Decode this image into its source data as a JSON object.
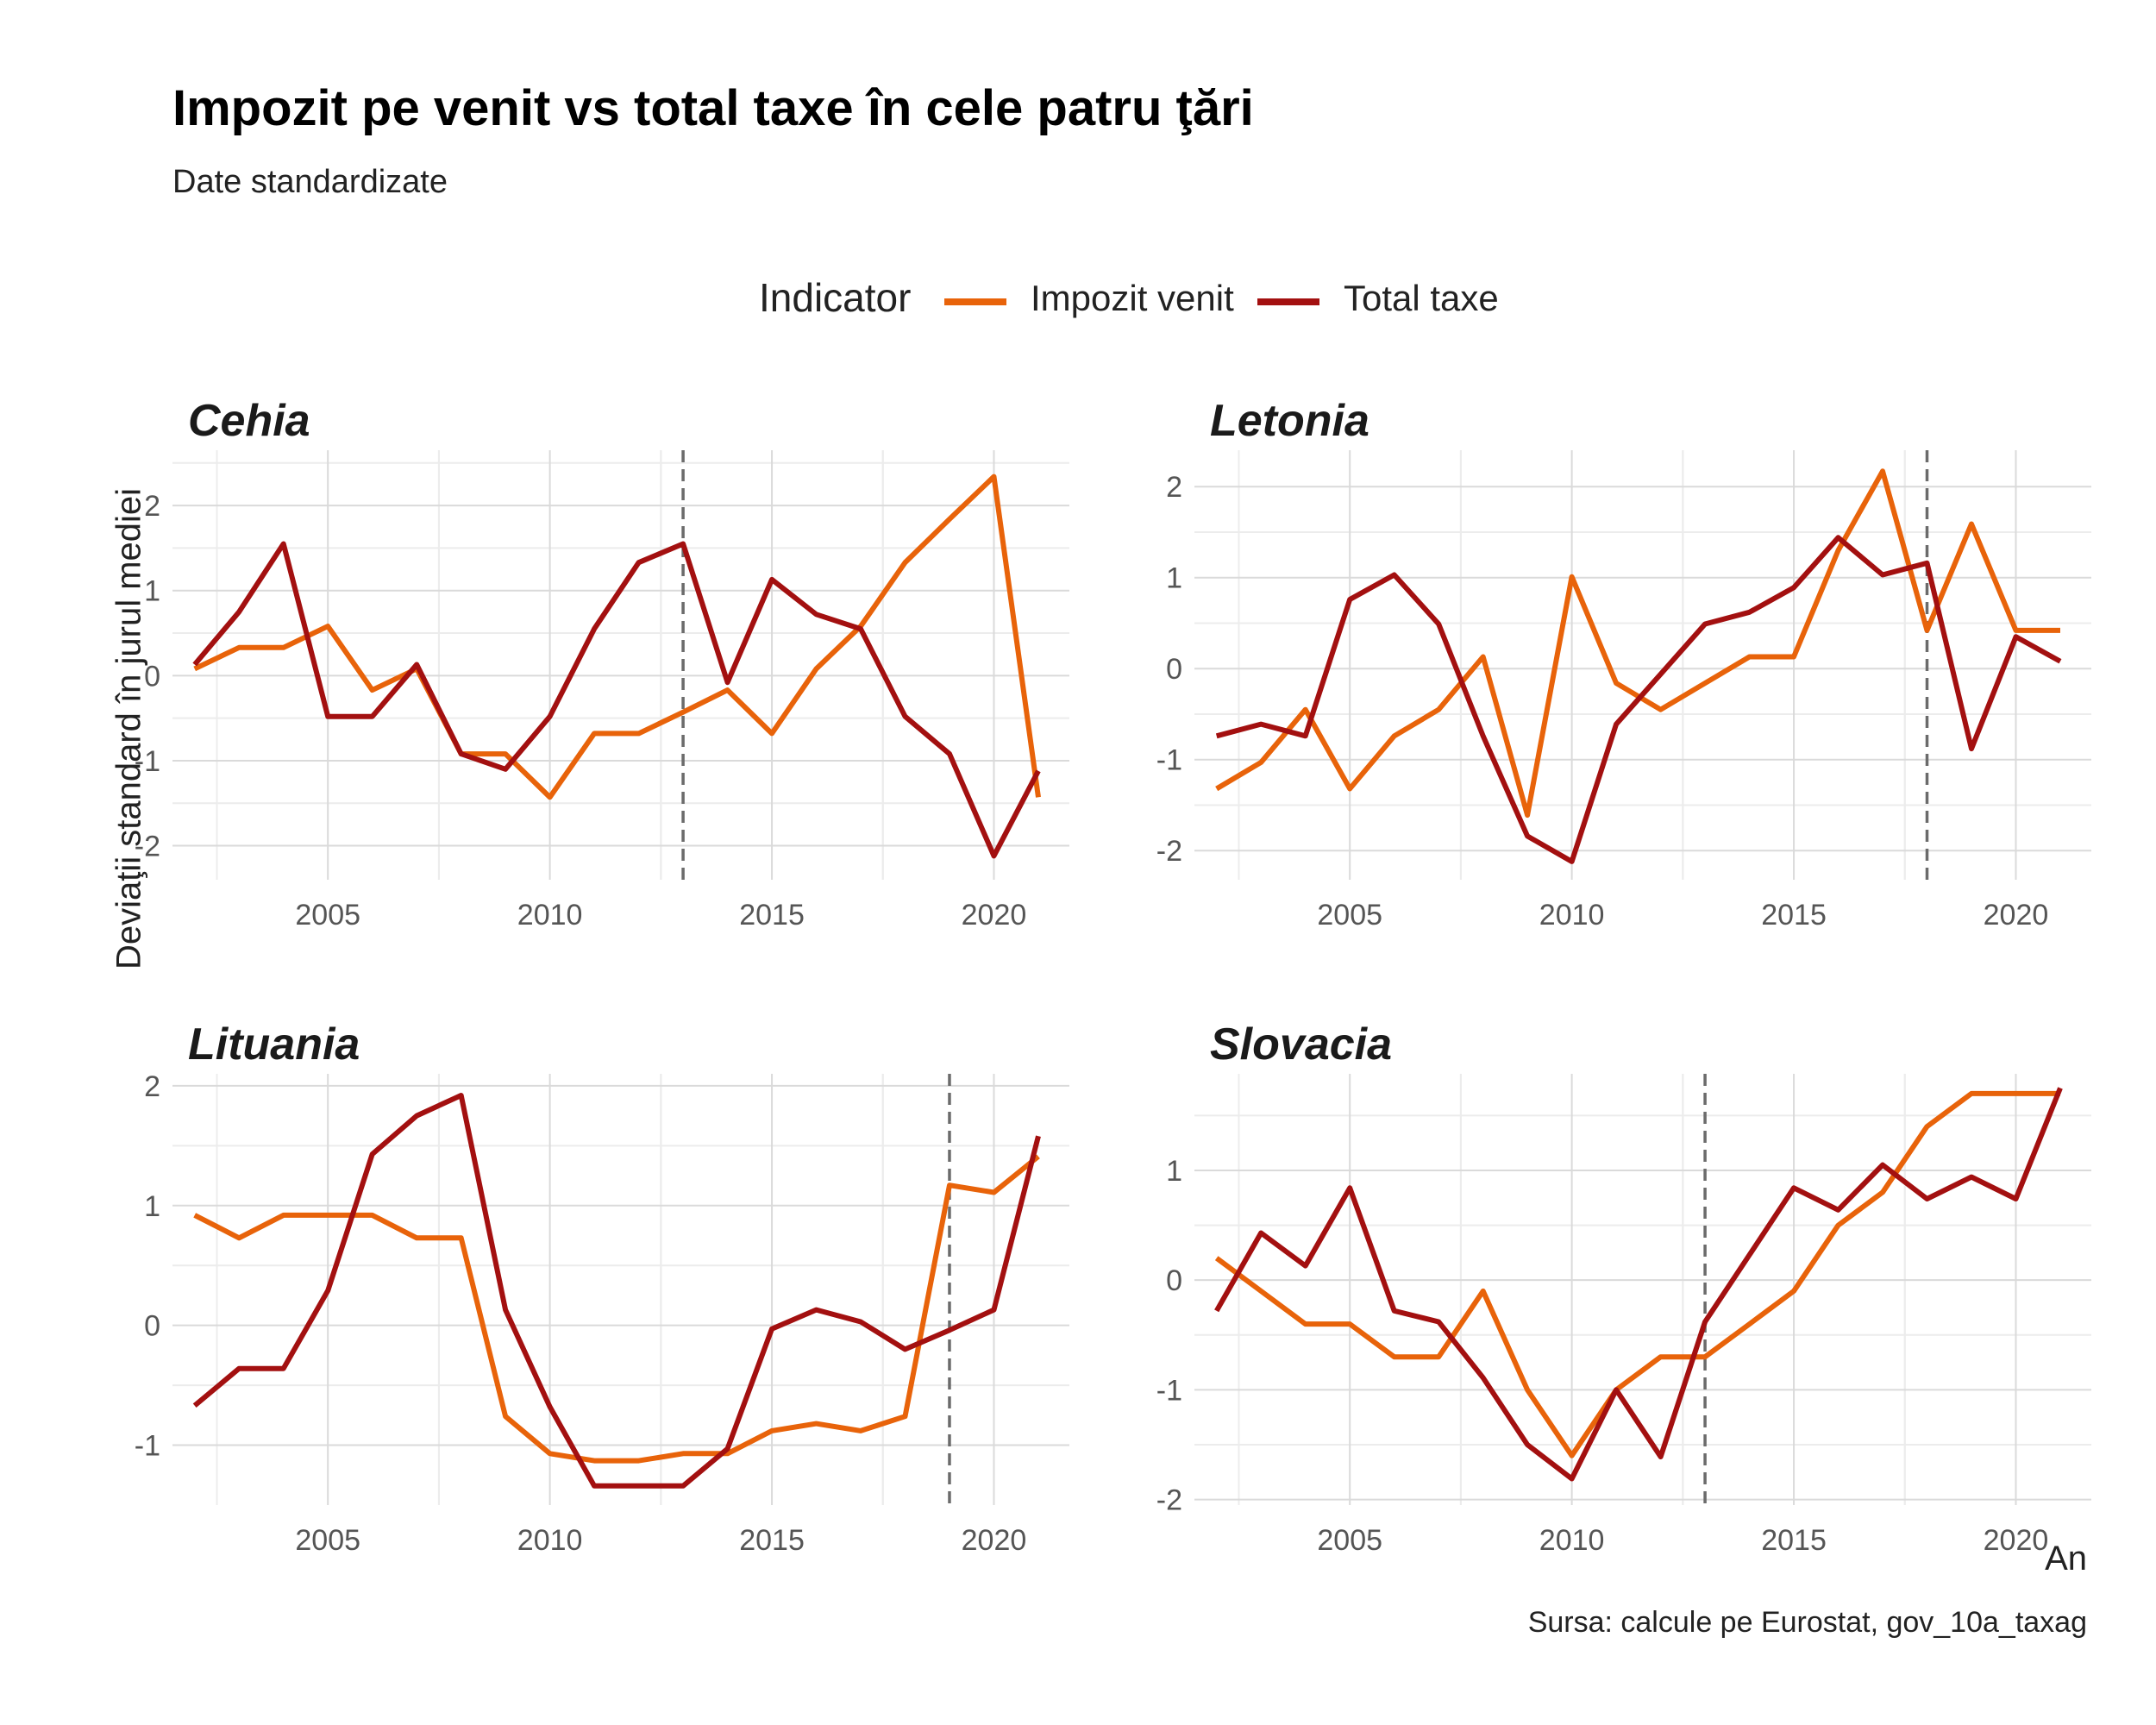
{
  "title": "Impozit pe venit vs total taxe în cele patru ţări",
  "subtitle": "Date standardizate",
  "legend": {
    "title": "Indicator",
    "items": [
      {
        "label": "Impozit venit",
        "color": "#E8630A"
      },
      {
        "label": "Total taxe",
        "color": "#A31010"
      }
    ]
  },
  "y_axis_label": "Deviaţii standard în jurul mediei",
  "x_axis_label": "An",
  "caption": "Sursa: calcule pe Eurostat, gov_10a_taxag",
  "colors": {
    "impozit_venit": "#E8630A",
    "total_taxe": "#A31010",
    "vline": "#6b6b6b",
    "grid": "#dadada"
  },
  "chart_data": [
    {
      "type": "line",
      "title": "Cehia",
      "x": [
        2002,
        2003,
        2004,
        2005,
        2006,
        2007,
        2008,
        2009,
        2010,
        2011,
        2012,
        2013,
        2014,
        2015,
        2016,
        2017,
        2018,
        2019,
        2020,
        2021
      ],
      "series": [
        {
          "name": "Impozit venit",
          "values": [
            0.08,
            0.33,
            0.33,
            0.58,
            -0.17,
            0.08,
            -0.92,
            -0.92,
            -1.43,
            -0.68,
            -0.68,
            -0.43,
            -0.17,
            -0.68,
            0.08,
            0.58,
            1.33,
            1.84,
            2.34,
            -1.43
          ]
        },
        {
          "name": "Total taxe",
          "values": [
            0.13,
            0.75,
            1.55,
            -0.48,
            -0.48,
            0.13,
            -0.92,
            -1.1,
            -0.48,
            0.55,
            1.33,
            1.55,
            -0.08,
            1.13,
            0.72,
            0.55,
            -0.48,
            -0.92,
            -2.12,
            -1.12
          ]
        }
      ],
      "vline": 2013,
      "xlim": [
        2001.5,
        2021.7
      ],
      "ylim": [
        -2.4,
        2.65
      ],
      "xticks": [
        2005,
        2010,
        2015,
        2020
      ],
      "yticks": [
        -2,
        -1,
        0,
        1,
        2
      ]
    },
    {
      "type": "line",
      "title": "Letonia",
      "x": [
        2002,
        2003,
        2004,
        2005,
        2006,
        2007,
        2008,
        2009,
        2010,
        2011,
        2012,
        2013,
        2014,
        2015,
        2016,
        2017,
        2018,
        2019,
        2020,
        2021
      ],
      "series": [
        {
          "name": "Impozit venit",
          "values": [
            -1.32,
            -1.03,
            -0.45,
            -1.32,
            -0.74,
            -0.45,
            0.13,
            -1.61,
            1.01,
            -0.16,
            -0.45,
            -0.16,
            0.13,
            0.13,
            1.3,
            2.17,
            0.42,
            1.59,
            0.42,
            0.42
          ]
        },
        {
          "name": "Total taxe",
          "values": [
            -0.74,
            -0.61,
            -0.74,
            0.76,
            1.03,
            0.49,
            -0.74,
            -1.84,
            -2.12,
            -0.61,
            -0.06,
            0.49,
            0.62,
            0.89,
            1.44,
            1.03,
            1.16,
            -0.88,
            0.35,
            0.08
          ]
        }
      ],
      "vline": 2018,
      "xlim": [
        2001.5,
        2021.7
      ],
      "ylim": [
        -2.32,
        2.4
      ],
      "xticks": [
        2005,
        2010,
        2015,
        2020
      ],
      "yticks": [
        -2,
        -1,
        0,
        1,
        2
      ]
    },
    {
      "type": "line",
      "title": "Lituania",
      "x": [
        2002,
        2003,
        2004,
        2005,
        2006,
        2007,
        2008,
        2009,
        2010,
        2011,
        2012,
        2013,
        2014,
        2015,
        2016,
        2017,
        2018,
        2019,
        2020,
        2021
      ],
      "series": [
        {
          "name": "Impozit venit",
          "values": [
            0.92,
            0.73,
            0.92,
            0.92,
            0.92,
            0.73,
            0.73,
            -0.76,
            -1.07,
            -1.13,
            -1.13,
            -1.07,
            -1.07,
            -0.88,
            -0.82,
            -0.88,
            -0.76,
            1.17,
            1.11,
            1.41
          ]
        },
        {
          "name": "Total taxe",
          "values": [
            -0.67,
            -0.36,
            -0.36,
            0.29,
            1.43,
            1.75,
            1.92,
            0.13,
            -0.68,
            -1.34,
            -1.34,
            -1.34,
            -1.03,
            -0.03,
            0.13,
            0.03,
            -0.2,
            -0.04,
            0.13,
            1.58
          ]
        }
      ],
      "vline": 2019,
      "xlim": [
        2001.5,
        2021.7
      ],
      "ylim": [
        -1.5,
        2.1
      ],
      "xticks": [
        2005,
        2010,
        2015,
        2020
      ],
      "yticks": [
        -1,
        0,
        1,
        2
      ]
    },
    {
      "type": "line",
      "title": "Slovacia",
      "x": [
        2002,
        2003,
        2004,
        2005,
        2006,
        2007,
        2008,
        2009,
        2010,
        2011,
        2012,
        2013,
        2014,
        2015,
        2016,
        2017,
        2018,
        2019,
        2020,
        2021
      ],
      "series": [
        {
          "name": "Impozit venit",
          "values": [
            0.2,
            -0.1,
            -0.4,
            -0.4,
            -0.7,
            -0.7,
            -0.1,
            -1.0,
            -1.6,
            -1.0,
            -0.7,
            -0.7,
            -0.4,
            -0.1,
            0.5,
            0.8,
            1.4,
            1.7,
            1.7,
            1.7
          ]
        },
        {
          "name": "Total taxe",
          "values": [
            -0.28,
            0.43,
            0.13,
            0.84,
            -0.28,
            -0.38,
            -0.89,
            -1.5,
            -1.81,
            -1.0,
            -1.61,
            -0.38,
            0.23,
            0.84,
            0.64,
            1.05,
            0.74,
            0.94,
            0.74,
            1.75
          ]
        }
      ],
      "vline": 2013,
      "xlim": [
        2001.5,
        2021.7
      ],
      "ylim": [
        -2.05,
        1.88
      ],
      "xticks": [
        2005,
        2010,
        2015,
        2020
      ],
      "yticks": [
        -2,
        -1,
        0,
        1
      ]
    }
  ]
}
